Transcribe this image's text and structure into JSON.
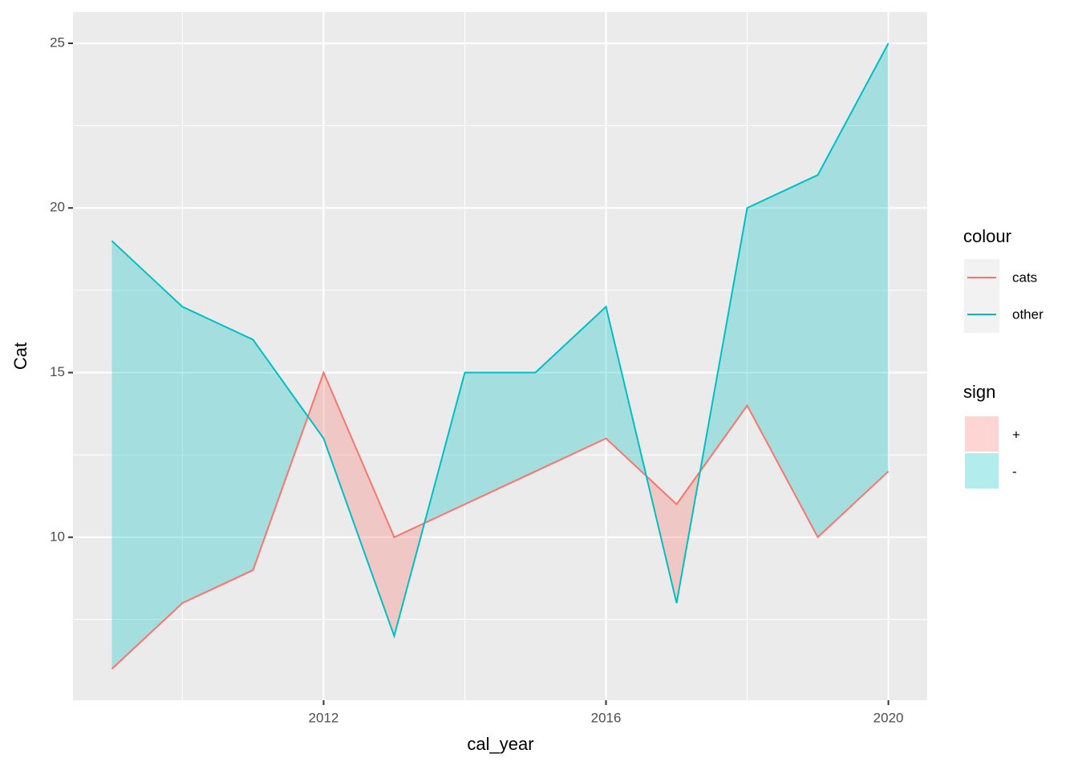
{
  "chart_data": {
    "type": "ribbon",
    "x_label": "cal_year",
    "y_label": "Cat",
    "x": [
      2009,
      2010,
      2011,
      2012,
      2013,
      2014,
      2015,
      2016,
      2017,
      2018,
      2019,
      2020
    ],
    "series": [
      {
        "name": "cats",
        "color": "#F8766D",
        "values": [
          6,
          8,
          9,
          15,
          10,
          11,
          12,
          13,
          11,
          14,
          10,
          12
        ]
      },
      {
        "name": "other",
        "color": "#00BFC4",
        "values": [
          19,
          17,
          16,
          13,
          7,
          15,
          15,
          17,
          8,
          20,
          21,
          25
        ]
      }
    ],
    "xlim": [
      2008.45,
      2020.55
    ],
    "xticks": [
      2012,
      2016,
      2020
    ],
    "minor_xticks": [
      2010,
      2014,
      2018
    ],
    "ylim": [
      5.05,
      25.95
    ],
    "yticks": [
      10,
      15,
      20,
      25
    ],
    "minor_yticks": [
      7.5,
      12.5,
      17.5,
      22.5
    ],
    "grid": true,
    "colour_legend_title": "colour",
    "fill_legend": {
      "title": "sign",
      "labels": [
        "+",
        "-"
      ],
      "colors": [
        "#F8766D",
        "#00BFC4"
      ],
      "alpha": 0.3
    }
  }
}
